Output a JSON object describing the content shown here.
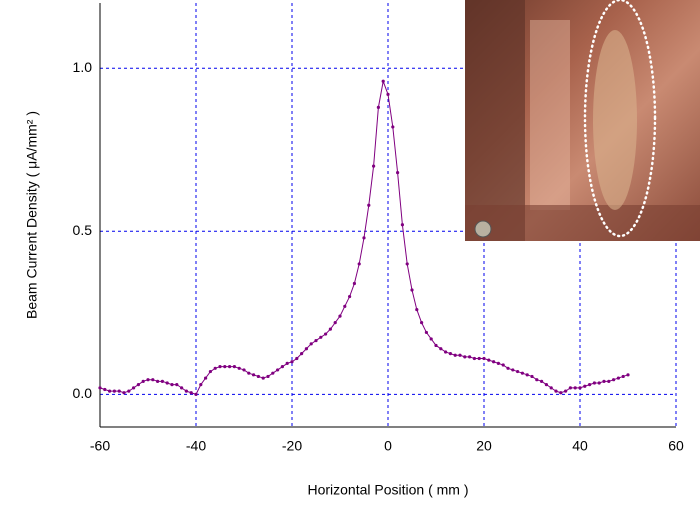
{
  "chart_data": {
    "type": "line",
    "xlabel": "Horizontal Position ( mm )",
    "ylabel": "Beam Current Density ( μA/mm² )",
    "x": [
      -60,
      -59,
      -58,
      -57,
      -56,
      -55,
      -54,
      -53,
      -52,
      -51,
      -50,
      -49,
      -48,
      -47,
      -46,
      -45,
      -44,
      -43,
      -42,
      -41,
      -40,
      -39,
      -38,
      -37,
      -36,
      -35,
      -34,
      -33,
      -32,
      -31,
      -30,
      -29,
      -28,
      -27,
      -26,
      -25,
      -24,
      -23,
      -22,
      -21,
      -20,
      -19,
      -18,
      -17,
      -16,
      -15,
      -14,
      -13,
      -12,
      -11,
      -10,
      -9,
      -8,
      -7,
      -6,
      -5,
      -4,
      -3,
      -2,
      -1,
      0,
      1,
      2,
      3,
      4,
      5,
      6,
      7,
      8,
      9,
      10,
      11,
      12,
      13,
      14,
      15,
      16,
      17,
      18,
      19,
      20,
      21,
      22,
      23,
      24,
      25,
      26,
      27,
      28,
      29,
      30,
      31,
      32,
      33,
      34,
      35,
      36,
      37,
      38,
      39,
      40,
      41,
      42,
      43,
      44,
      45,
      46,
      47,
      48,
      49,
      50
    ],
    "series": [
      {
        "color": "#800080",
        "values": [
          0.02,
          0.015,
          0.01,
          0.01,
          0.01,
          0.005,
          0.01,
          0.02,
          0.03,
          0.04,
          0.045,
          0.045,
          0.04,
          0.04,
          0.035,
          0.03,
          0.03,
          0.02,
          0.01,
          0.005,
          0.0,
          0.03,
          0.05,
          0.07,
          0.08,
          0.085,
          0.085,
          0.085,
          0.085,
          0.08,
          0.075,
          0.065,
          0.06,
          0.055,
          0.05,
          0.055,
          0.065,
          0.075,
          0.085,
          0.095,
          0.1,
          0.11,
          0.125,
          0.14,
          0.155,
          0.165,
          0.175,
          0.185,
          0.2,
          0.22,
          0.24,
          0.27,
          0.3,
          0.34,
          0.4,
          0.48,
          0.58,
          0.7,
          0.88,
          0.96,
          0.92,
          0.82,
          0.68,
          0.52,
          0.4,
          0.32,
          0.26,
          0.22,
          0.19,
          0.17,
          0.15,
          0.14,
          0.13,
          0.125,
          0.12,
          0.12,
          0.115,
          0.115,
          0.11,
          0.11,
          0.11,
          0.105,
          0.1,
          0.095,
          0.09,
          0.08,
          0.075,
          0.07,
          0.065,
          0.06,
          0.055,
          0.045,
          0.04,
          0.03,
          0.02,
          0.01,
          0.005,
          0.01,
          0.02,
          0.02,
          0.02,
          0.025,
          0.03,
          0.035,
          0.035,
          0.04,
          0.04,
          0.045,
          0.05,
          0.055,
          0.06
        ]
      }
    ],
    "xlim": [
      -60,
      60
    ],
    "xticks": [
      -60,
      -40,
      -20,
      0,
      20,
      40,
      60
    ],
    "ylim": [
      -0.1,
      1.2
    ],
    "yticks": [
      {
        "value": 0,
        "label": "0.0"
      },
      {
        "value": 0.5,
        "label": "0.5"
      },
      {
        "value": 1,
        "label": "1.0"
      }
    ],
    "grid": true
  }
}
